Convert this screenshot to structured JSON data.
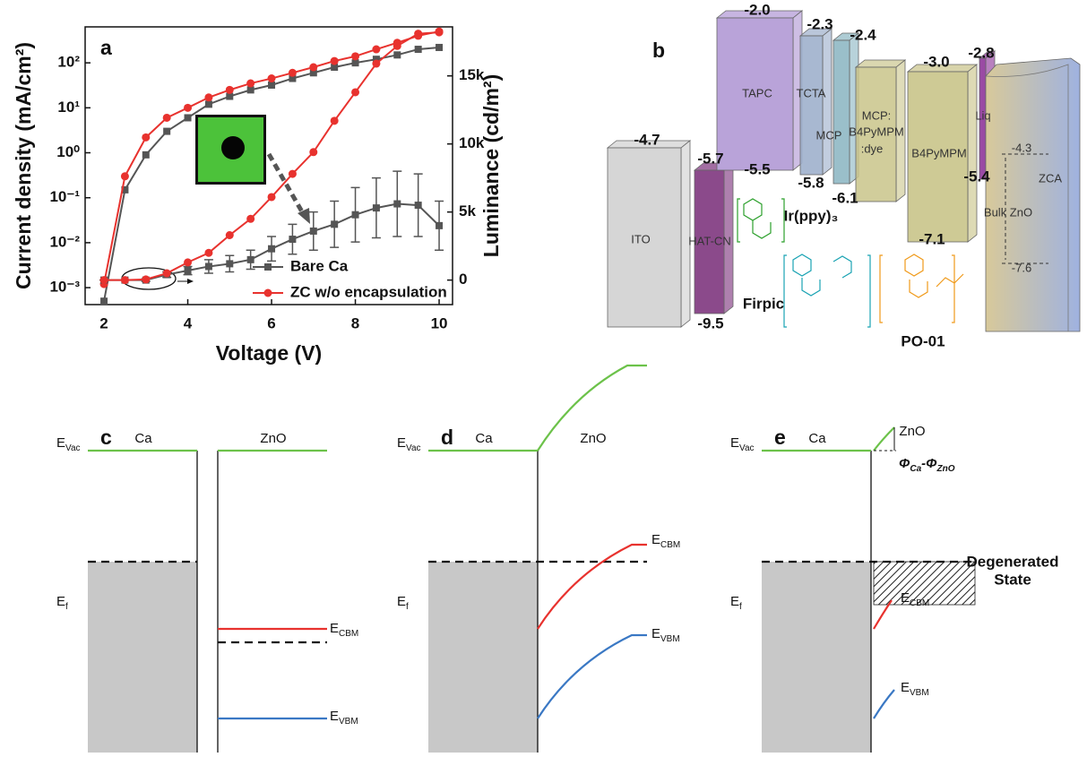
{
  "chart_data": {
    "type": "line",
    "label": "a",
    "xlabel": "Voltage (V)",
    "ylabel": "Current density (mA/cm²)",
    "y2label": "Luminance (cd/m²)",
    "x": [
      2,
      2.5,
      3,
      3.5,
      4,
      4.5,
      5,
      5.5,
      6,
      6.5,
      7,
      7.5,
      8,
      8.5,
      9,
      9.5,
      10
    ],
    "xlim": [
      1.55,
      10.32
    ],
    "xticks": [
      2,
      4,
      6,
      8,
      10
    ],
    "ylog": true,
    "ylim": [
      0.00042,
      631
    ],
    "yticks": [
      {
        "value": 0.001,
        "label": "10⁻³"
      },
      {
        "value": 0.01,
        "label": "10⁻²"
      },
      {
        "value": 0.1,
        "label": "10⁻¹"
      },
      {
        "value": 1,
        "label": "10⁰"
      },
      {
        "value": 10,
        "label": "10¹"
      },
      {
        "value": 100,
        "label": "10²"
      }
    ],
    "y2lim": [
      -1800,
      18600
    ],
    "y2ticks": [
      0,
      {
        "value": 5000,
        "label": "5k"
      },
      {
        "value": 10000,
        "label": "10k"
      },
      {
        "value": 15000,
        "label": "15k"
      }
    ],
    "legend": "lower right",
    "series": [
      {
        "name": "Bare Ca",
        "color": "#555555",
        "marker": "square",
        "values": [
          0.0005,
          0.15,
          0.9,
          3,
          6,
          12,
          18,
          25,
          32,
          45,
          60,
          80,
          100,
          120,
          150,
          200,
          220
        ]
      },
      {
        "name": "ZC w/o encapsulation",
        "color": "#e8322e",
        "marker": "circle",
        "values": [
          0.0012,
          0.3,
          2.2,
          6,
          10,
          17,
          25,
          35,
          45,
          60,
          80,
          110,
          140,
          200,
          280,
          400,
          500
        ]
      },
      {
        "color": "#555555",
        "marker": "square",
        "axis": "y2",
        "values": [
          0,
          0,
          0,
          400,
          700,
          1000,
          1200,
          1500,
          2300,
          3000,
          3600,
          4100,
          4800,
          5300,
          5600,
          5500,
          4000
        ],
        "errors": [
          0,
          0,
          100,
          200,
          300,
          500,
          600,
          700,
          900,
          1100,
          1400,
          1700,
          2000,
          2200,
          2400,
          2300,
          1800
        ]
      },
      {
        "color": "#e8322e",
        "marker": "circle",
        "axis": "y2",
        "values": [
          0,
          0,
          50,
          500,
          1300,
          2000,
          3300,
          4500,
          6100,
          7800,
          9400,
          11700,
          13800,
          15900,
          17200,
          18100,
          18200
        ]
      }
    ]
  },
  "panel_b": {
    "label": "b",
    "levels": [
      "-2.0",
      "-2.3",
      "-2.4",
      "-2.8",
      "-3.0",
      "-4.7",
      "-5.7",
      "-5.5",
      "-5.8",
      "-6.1",
      "-5.4",
      "-7.1",
      "-9.5",
      "-4.3",
      "-7.6"
    ],
    "layers": [
      "TAPC",
      "TCTA",
      "MCP",
      "MCP:",
      "B4PyMPM",
      ":dye",
      "B4PyMPM",
      "Liq",
      "ZCA",
      "Bulk ZnO",
      "ITO",
      "HAT-CN"
    ],
    "dopants": [
      "Ir(ppy)₃",
      "Firpic",
      "PO-01"
    ]
  },
  "panels": [
    {
      "label": "c",
      "metal": "Ca",
      "semi": "ZnO",
      "evac": "E",
      "evac_sub": "Vac",
      "ef": "E",
      "ef_sub": "f",
      "ecbm": "E",
      "ecbm_sub": "CBM",
      "evbm": "E",
      "evbm_sub": "VBM"
    },
    {
      "label": "d",
      "metal": "Ca",
      "semi": "ZnO",
      "evac": "E",
      "evac_sub": "Vac",
      "ef": "E",
      "ef_sub": "f",
      "ecbm": "E",
      "ecbm_sub": "CBM",
      "evbm": "E",
      "evbm_sub": "VBM"
    },
    {
      "label": "e",
      "metal": "Ca",
      "semi": "ZnO",
      "evac": "E",
      "evac_sub": "Vac",
      "ef": "E",
      "ef_sub": "f",
      "ecbm": "E",
      "ecbm_sub": "CBM",
      "evbm": "E",
      "evbm_sub": "VBM",
      "phi1": "Φ",
      "phi1_sub": "Ca",
      "phi_sep": "-",
      "phi2": "Φ",
      "phi2_sub": "ZnO",
      "state1": "Degenerated",
      "state2": "State"
    }
  ]
}
